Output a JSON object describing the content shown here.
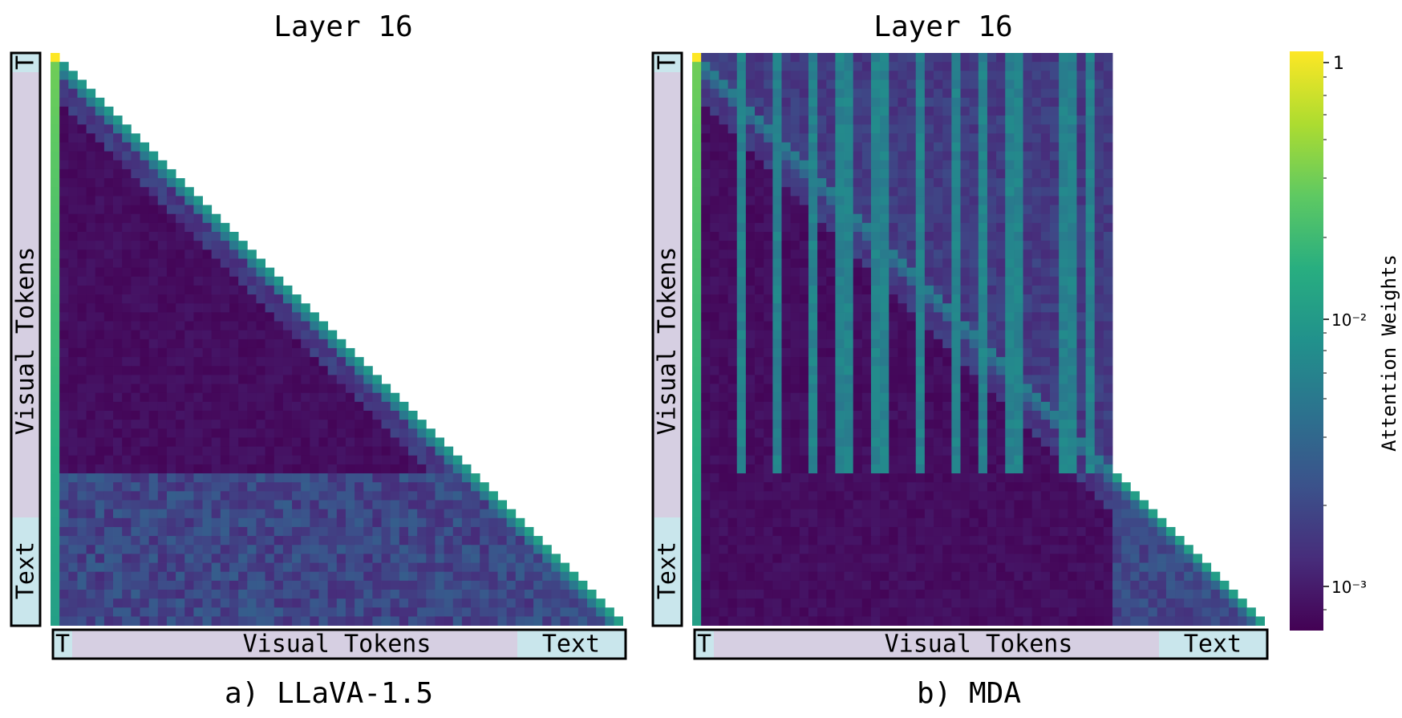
{
  "panels": [
    {
      "title": "Layer 16",
      "caption": "a) LLaVA-1.5",
      "segments": {
        "sys": "T",
        "visual": "Visual Tokens",
        "text": "Text"
      }
    },
    {
      "title": "Layer 16",
      "caption": "b) MDA",
      "segments": {
        "sys": "T",
        "visual": "Visual Tokens",
        "text": "Text"
      }
    }
  ],
  "colorbar": {
    "label": "Attention Weights",
    "ticks": [
      "1",
      "10⁻²",
      "10⁻³"
    ]
  },
  "colors": {
    "segment_visual": "#d6cfe2",
    "segment_text": "#c9e6ec",
    "viridis_low": "#440154",
    "viridis_high": "#fde725"
  },
  "chart_data": [
    {
      "type": "heatmap",
      "title": "Layer 16",
      "caption": "a) LLaVA-1.5",
      "mask": "causal (lower-triangular)",
      "x_segments": [
        "T",
        "Visual Tokens",
        "Text"
      ],
      "y_segments": [
        "T",
        "Visual Tokens",
        "Text"
      ],
      "pattern": "strong attention on first (system) token column and on the diagonal; visual-to-visual attention otherwise near minimum",
      "scale": "log",
      "zrange": [
        0.0007,
        1
      ]
    },
    {
      "type": "heatmap",
      "title": "Layer 16",
      "caption": "b) MDA",
      "mask": "full (non-causal) within visual tokens, causal for text",
      "x_segments": [
        "T",
        "Visual Tokens",
        "Text"
      ],
      "y_segments": [
        "T",
        "Visual Tokens",
        "Text"
      ],
      "pattern": "strong first-token column, visible diagonal, and several vertical high-attention stripes over visual token columns",
      "scale": "log",
      "zrange": [
        0.0007,
        1
      ]
    }
  ]
}
